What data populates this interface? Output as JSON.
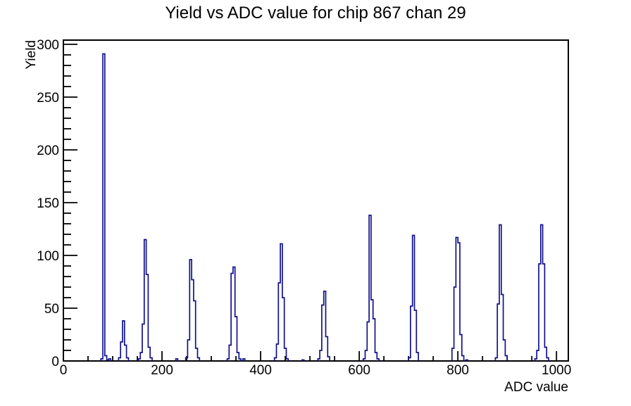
{
  "title": "Yield vs ADC value for chip 867 chan 29",
  "chart_data": {
    "type": "bar",
    "title": "Yield vs ADC value for chip 867 chan 29",
    "xlabel": "ADC value",
    "ylabel": "Yield",
    "xlim": [
      0,
      1024
    ],
    "ylim": [
      0,
      304
    ],
    "grid": false,
    "legend": "none",
    "x_major_ticks": [
      0,
      200,
      400,
      600,
      800,
      1000
    ],
    "x_major_tick_labels": [
      "0",
      "200",
      "400",
      "600",
      "800",
      "1000"
    ],
    "x_minor_step": 50,
    "y_major_ticks": [
      0,
      50,
      100,
      150,
      200,
      250,
      300
    ],
    "y_major_tick_labels": [
      "0",
      "50",
      "100",
      "150",
      "200",
      "250",
      "300"
    ],
    "y_minor_step": 10,
    "bin_width_adc": 4,
    "line_color": "#11118d",
    "frame_color": "#000000",
    "bins": [
      [
        76,
        2
      ],
      [
        80,
        291
      ],
      [
        84,
        5
      ],
      [
        88,
        1
      ],
      [
        92,
        2
      ],
      [
        112,
        3
      ],
      [
        116,
        18
      ],
      [
        120,
        38
      ],
      [
        124,
        15
      ],
      [
        128,
        3
      ],
      [
        152,
        2
      ],
      [
        156,
        8
      ],
      [
        160,
        35
      ],
      [
        164,
        115
      ],
      [
        168,
        82
      ],
      [
        172,
        13
      ],
      [
        176,
        3
      ],
      [
        228,
        2
      ],
      [
        248,
        3
      ],
      [
        252,
        20
      ],
      [
        256,
        96
      ],
      [
        260,
        77
      ],
      [
        264,
        57
      ],
      [
        268,
        12
      ],
      [
        272,
        3
      ],
      [
        332,
        2
      ],
      [
        336,
        15
      ],
      [
        340,
        83
      ],
      [
        344,
        89
      ],
      [
        348,
        42
      ],
      [
        352,
        8
      ],
      [
        356,
        2
      ],
      [
        364,
        2
      ],
      [
        428,
        3
      ],
      [
        432,
        16
      ],
      [
        436,
        74
      ],
      [
        440,
        111
      ],
      [
        444,
        60
      ],
      [
        448,
        12
      ],
      [
        452,
        2
      ],
      [
        484,
        1
      ],
      [
        516,
        2
      ],
      [
        520,
        10
      ],
      [
        524,
        53
      ],
      [
        528,
        66
      ],
      [
        532,
        23
      ],
      [
        536,
        4
      ],
      [
        608,
        2
      ],
      [
        612,
        10
      ],
      [
        616,
        37
      ],
      [
        620,
        138
      ],
      [
        624,
        58
      ],
      [
        628,
        40
      ],
      [
        632,
        8
      ],
      [
        636,
        2
      ],
      [
        700,
        3
      ],
      [
        704,
        52
      ],
      [
        708,
        119
      ],
      [
        712,
        48
      ],
      [
        716,
        8
      ],
      [
        788,
        12
      ],
      [
        792,
        70
      ],
      [
        796,
        117
      ],
      [
        800,
        112
      ],
      [
        804,
        25
      ],
      [
        808,
        5
      ],
      [
        816,
        1
      ],
      [
        876,
        3
      ],
      [
        880,
        54
      ],
      [
        884,
        129
      ],
      [
        888,
        63
      ],
      [
        892,
        20
      ],
      [
        896,
        5
      ],
      [
        956,
        2
      ],
      [
        960,
        10
      ],
      [
        964,
        92
      ],
      [
        968,
        129
      ],
      [
        972,
        92
      ],
      [
        976,
        13
      ],
      [
        980,
        3
      ]
    ],
    "peaks_summary": [
      {
        "adc": 82,
        "max_yield": 291
      },
      {
        "adc": 122,
        "max_yield": 38
      },
      {
        "adc": 166,
        "max_yield": 115
      },
      {
        "adc": 258,
        "max_yield": 96
      },
      {
        "adc": 346,
        "max_yield": 89
      },
      {
        "adc": 442,
        "max_yield": 111
      },
      {
        "adc": 530,
        "max_yield": 66
      },
      {
        "adc": 622,
        "max_yield": 138
      },
      {
        "adc": 710,
        "max_yield": 119
      },
      {
        "adc": 798,
        "max_yield": 117
      },
      {
        "adc": 886,
        "max_yield": 129
      },
      {
        "adc": 970,
        "max_yield": 129
      }
    ]
  }
}
